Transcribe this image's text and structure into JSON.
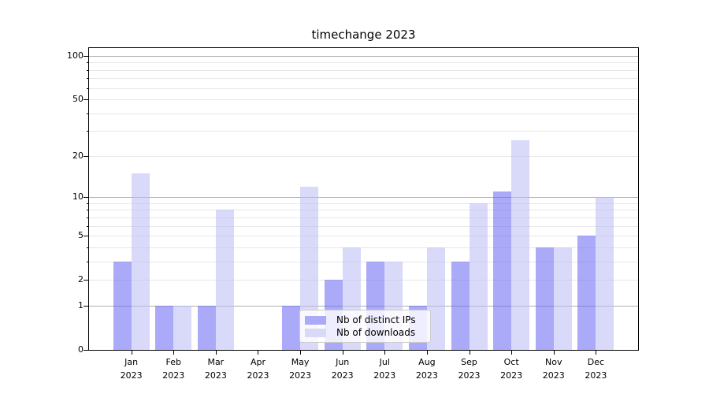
{
  "title": "timechange 2023",
  "chart_data": {
    "type": "bar",
    "title": "timechange 2023",
    "categories": [
      "Jan",
      "Feb",
      "Mar",
      "Apr",
      "May",
      "Jun",
      "Jul",
      "Aug",
      "Sep",
      "Oct",
      "Nov",
      "Dec"
    ],
    "category_year": "2023",
    "series": [
      {
        "name": "Nb of distinct IPs",
        "values": [
          3,
          1,
          1,
          0,
          1,
          2,
          3,
          1,
          3,
          11,
          4,
          5
        ],
        "fill": "rgba(100,100,242,0.55)",
        "legend_color": "#aaaaf8"
      },
      {
        "name": "Nb of downloads",
        "values": [
          15,
          1,
          8,
          0,
          12,
          4,
          3,
          4,
          9,
          26,
          4,
          10
        ],
        "fill": "rgba(186,186,244,0.55)",
        "legend_color": "#d9d9f9"
      }
    ],
    "xlabel": "",
    "ylabel": "",
    "y_scale": "log1p",
    "ylim": [
      0,
      113.3
    ],
    "xlim": [
      -1,
      12
    ],
    "y_ticks": [
      0,
      1,
      2,
      5,
      10,
      20,
      50,
      100
    ],
    "y_gridlines_major": [
      1,
      10,
      100
    ],
    "y_gridlines_minor": [
      2,
      3,
      4,
      5,
      6,
      7,
      8,
      9,
      20,
      30,
      40,
      50,
      60,
      70,
      80,
      90
    ],
    "grid": true,
    "legend_position": "lower center"
  },
  "colors": {
    "grid_major": "#b0b0b0",
    "grid_minor": "#e7e7e7",
    "spine": "#000000",
    "background": "#ffffff"
  }
}
